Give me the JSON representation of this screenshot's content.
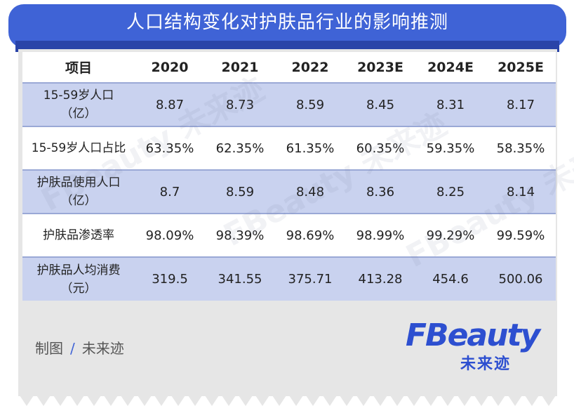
{
  "title": "人口结构变化对护肤品行业的影响推测",
  "table": {
    "headers": [
      "项目",
      "2020",
      "2021",
      "2022",
      "2023E",
      "2024E",
      "2025E"
    ],
    "rows": [
      {
        "label": "15-59岁人口\n（亿）",
        "values": [
          "8.87",
          "8.73",
          "8.59",
          "8.45",
          "8.31",
          "8.17"
        ]
      },
      {
        "label": "15-59岁人口占比",
        "values": [
          "63.35%",
          "62.35%",
          "61.35%",
          "60.35%",
          "59.35%",
          "58.35%"
        ]
      },
      {
        "label": "护肤品使用人口\n（亿）",
        "values": [
          "8.7",
          "8.59",
          "8.48",
          "8.36",
          "8.25",
          "8.14"
        ]
      },
      {
        "label": "护肤品渗透率",
        "values": [
          "98.09%",
          "98.39%",
          "98.69%",
          "98.99%",
          "99.29%",
          "99.59%"
        ]
      },
      {
        "label": "护肤品人均消费\n（元）",
        "values": [
          "319.5",
          "341.55",
          "375.71",
          "413.28",
          "454.6",
          "500.06"
        ]
      }
    ]
  },
  "footer": {
    "credit_label": "制图",
    "credit_slash": "/",
    "credit_name": "未来迹"
  },
  "logo": {
    "word": "FBeauty",
    "sub": "未来迹"
  },
  "colors": {
    "banner": "#3f63d6",
    "row_blue": "#c9d2ef",
    "card_gray": "#e6e6e6"
  }
}
